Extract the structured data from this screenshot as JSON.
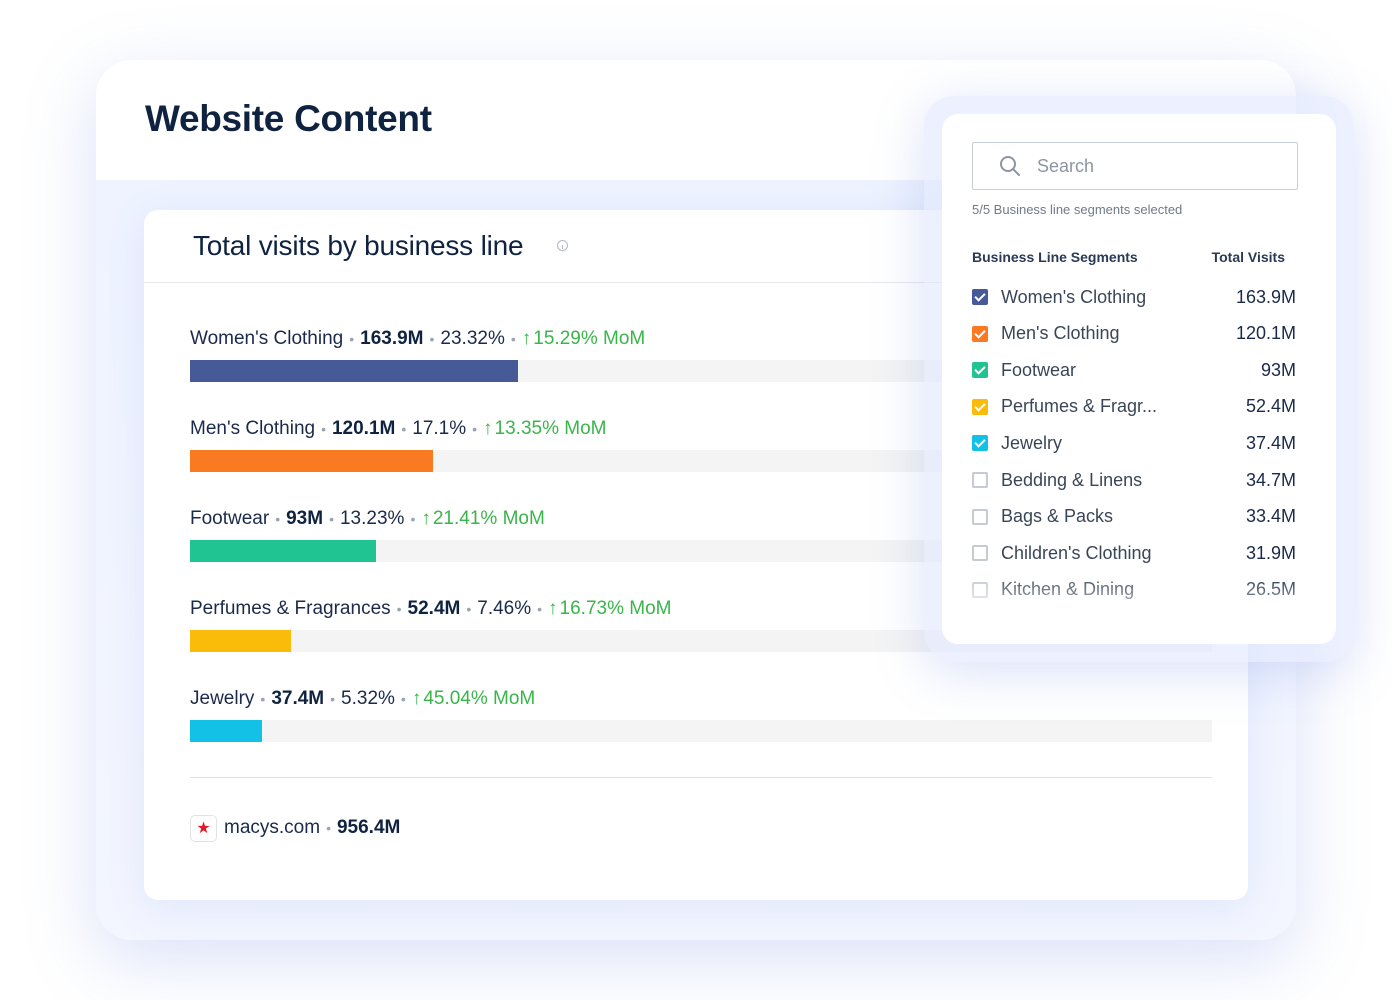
{
  "page": {
    "title": "Website Content"
  },
  "card": {
    "title": "Total visits by business line",
    "rows": [
      {
        "name": "Women's Clothing",
        "visits": "163.9M",
        "share": "23.32%",
        "mom": "15.29% MoM",
        "color": "#455a96",
        "fraction": 0.3213
      },
      {
        "name": "Men's Clothing",
        "visits": "120.1M",
        "share": "17.1%",
        "mom": "13.35% MoM",
        "color": "#fa7a22",
        "fraction": 0.2373
      },
      {
        "name": "Footwear",
        "visits": "93M",
        "share": "13.23%",
        "mom": "21.41% MoM",
        "color": "#20c493",
        "fraction": 0.182
      },
      {
        "name": "Perfumes & Fragrances",
        "visits": "52.4M",
        "share": "7.46%",
        "mom": "16.73% MoM",
        "color": "#fbbb0b",
        "fraction": 0.0985
      },
      {
        "name": "Jewelry",
        "visits": "37.4M",
        "share": "5.32%",
        "mom": "45.04% MoM",
        "color": "#13c1e6",
        "fraction": 0.0705
      }
    ],
    "footer": {
      "domain": "macys.com",
      "total": "956.4M",
      "favicon": "star-icon"
    }
  },
  "panel": {
    "search": {
      "placeholder": "Search",
      "value": ""
    },
    "selected_note": "5/5 Business line segments selected",
    "col_segments": "Business Line Segments",
    "col_visits": "Total Visits",
    "segments": [
      {
        "name": "Women's Clothing",
        "visits": "163.9M",
        "checked": true,
        "color": "#455a96"
      },
      {
        "name": "Men's Clothing",
        "visits": "120.1M",
        "checked": true,
        "color": "#fa7a22"
      },
      {
        "name": "Footwear",
        "visits": "93M",
        "checked": true,
        "color": "#20c493"
      },
      {
        "name": "Perfumes & Fragr...",
        "visits": "52.4M",
        "checked": true,
        "color": "#fbbb0b"
      },
      {
        "name": "Jewelry",
        "visits": "37.4M",
        "checked": true,
        "color": "#13c1e6"
      },
      {
        "name": "Bedding & Linens",
        "visits": "34.7M",
        "checked": false
      },
      {
        "name": "Bags & Packs",
        "visits": "33.4M",
        "checked": false
      },
      {
        "name": "Children's Clothing",
        "visits": "31.9M",
        "checked": false
      },
      {
        "name": "Kitchen & Dining",
        "visits": "26.5M",
        "checked": false
      }
    ]
  },
  "colors": {
    "mom_positive": "#3ab54a",
    "track": "#f4f4f4",
    "accent_glow": "#eef3ff"
  }
}
